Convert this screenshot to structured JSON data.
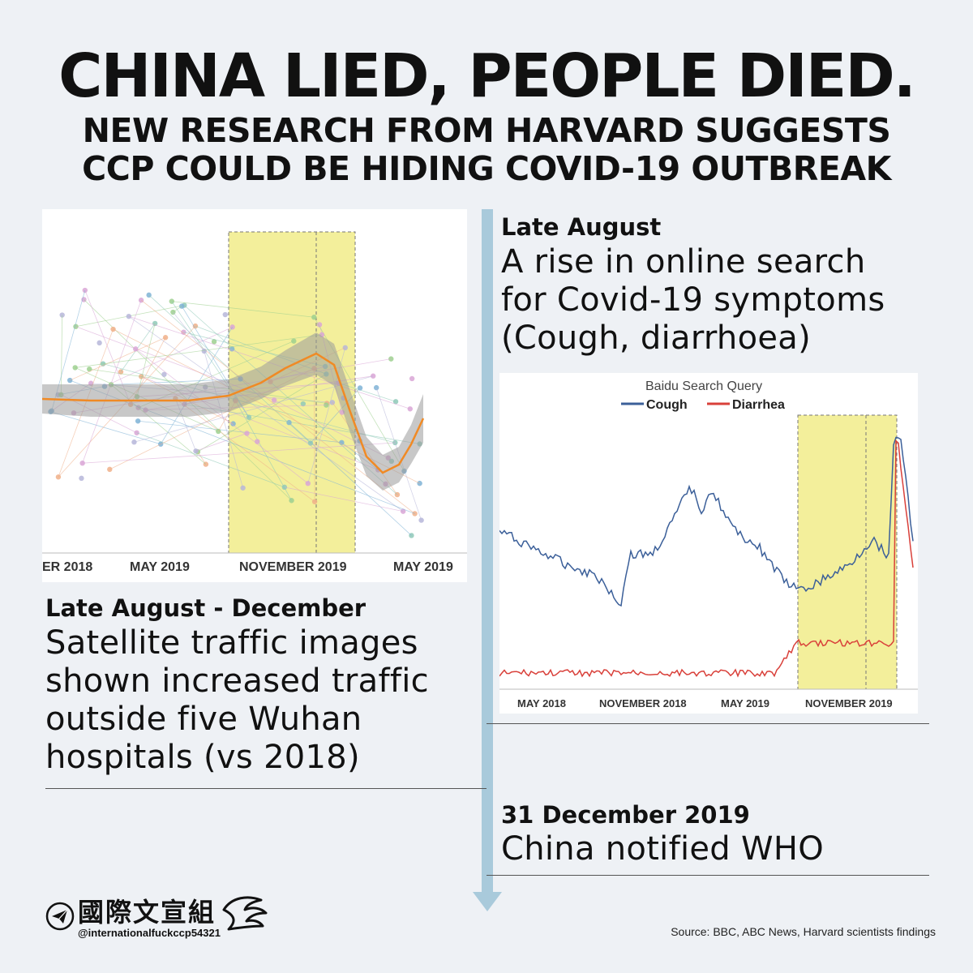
{
  "header": {
    "title": "CHINA LIED, PEOPLE DIED.",
    "subtitle_line1": "NEW RESEARCH FROM HARVARD SUGGESTS",
    "subtitle_line2": "CCP COULD BE HIDING COVID-19 OUTBREAK"
  },
  "events": [
    {
      "date": "Late August",
      "desc_lines": [
        "A rise in online search",
        "for Covid-19 symptoms",
        "(Cough, diarrhoea)"
      ]
    },
    {
      "date": "Late August - December",
      "desc_lines": [
        "Satellite traffic images",
        "shown increased traffic",
        "outside five Wuhan",
        "hospitals (vs 2018)"
      ]
    },
    {
      "date": "31 December 2019",
      "desc_lines": [
        "China notified WHO"
      ]
    }
  ],
  "colors": {
    "timeline": "#a9cadb",
    "highlight": "#f3ef9b",
    "cough": "#3b5f99",
    "diarrhea": "#d9403a",
    "trend": "#f08a25"
  },
  "chart_data": [
    {
      "type": "scatter",
      "title": "",
      "x_ticks": [
        "ER 2018",
        "MAY 2019",
        "NOVEMBER 2019",
        "MAY 2019"
      ],
      "highlight_band": "late August - December 2019",
      "series": [],
      "note": "points and orange smoothed trend with grey confidence band"
    },
    {
      "type": "line",
      "title": "Baidu Search Query",
      "x_ticks": [
        "MAY 2018",
        "NOVEMBER 2018",
        "MAY 2019",
        "NOVEMBER 2019"
      ],
      "highlight_band": "late August - December 2019",
      "series": [
        {
          "name": "Cough"
        },
        {
          "name": "Diarrhea"
        }
      ]
    }
  ],
  "footer": {
    "brand_cn": "國際文宣組",
    "handle": "@internationalfuckccp54321",
    "source": "Source: BBC, ABC News, Harvard scientists findings"
  }
}
